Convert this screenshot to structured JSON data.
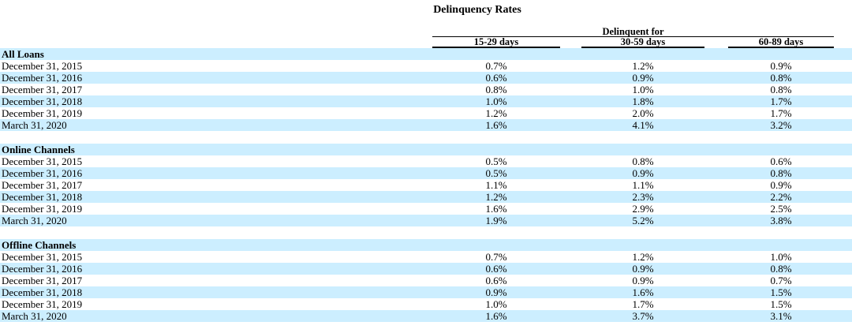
{
  "title": "Delinquency Rates",
  "header": {
    "group_label": "Delinquent for",
    "columns": [
      "15-29 days",
      "30-59 days",
      "60-89 days"
    ]
  },
  "colors": {
    "stripe": "#cceeff",
    "text": "#000000",
    "rule": "#000000"
  },
  "sections": [
    {
      "name": "All Loans",
      "rows": [
        {
          "label": "December 31, 2015",
          "values": [
            "0.7%",
            "1.2%",
            "0.9%"
          ]
        },
        {
          "label": "December 31, 2016",
          "values": [
            "0.6%",
            "0.9%",
            "0.8%"
          ]
        },
        {
          "label": "December 31, 2017",
          "values": [
            "0.8%",
            "1.0%",
            "0.8%"
          ]
        },
        {
          "label": "December 31, 2018",
          "values": [
            "1.0%",
            "1.8%",
            "1.7%"
          ]
        },
        {
          "label": "December 31, 2019",
          "values": [
            "1.2%",
            "2.0%",
            "1.7%"
          ]
        },
        {
          "label": "March 31, 2020",
          "values": [
            "1.6%",
            "4.1%",
            "3.2%"
          ]
        }
      ]
    },
    {
      "name": "Online Channels",
      "rows": [
        {
          "label": "December 31, 2015",
          "values": [
            "0.5%",
            "0.8%",
            "0.6%"
          ]
        },
        {
          "label": "December 31, 2016",
          "values": [
            "0.5%",
            "0.9%",
            "0.8%"
          ]
        },
        {
          "label": "December 31, 2017",
          "values": [
            "1.1%",
            "1.1%",
            "0.9%"
          ]
        },
        {
          "label": "December 31, 2018",
          "values": [
            "1.2%",
            "2.3%",
            "2.2%"
          ]
        },
        {
          "label": "December 31, 2019",
          "values": [
            "1.6%",
            "2.9%",
            "2.5%"
          ]
        },
        {
          "label": "March 31, 2020",
          "values": [
            "1.9%",
            "5.2%",
            "3.8%"
          ]
        }
      ]
    },
    {
      "name": "Offline Channels",
      "rows": [
        {
          "label": "December 31, 2015",
          "values": [
            "0.7%",
            "1.2%",
            "1.0%"
          ]
        },
        {
          "label": "December 31, 2016",
          "values": [
            "0.6%",
            "0.9%",
            "0.8%"
          ]
        },
        {
          "label": "December 31, 2017",
          "values": [
            "0.6%",
            "0.9%",
            "0.7%"
          ]
        },
        {
          "label": "December 31, 2018",
          "values": [
            "0.9%",
            "1.6%",
            "1.5%"
          ]
        },
        {
          "label": "December 31, 2019",
          "values": [
            "1.0%",
            "1.7%",
            "1.5%"
          ]
        },
        {
          "label": "March 31, 2020",
          "values": [
            "1.6%",
            "3.7%",
            "3.1%"
          ]
        }
      ]
    }
  ]
}
